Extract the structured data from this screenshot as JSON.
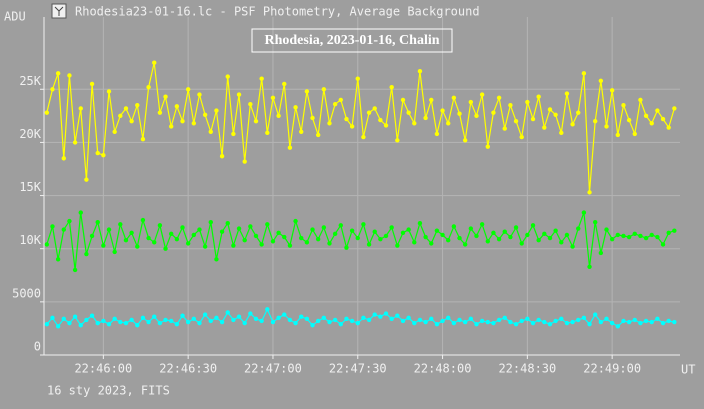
{
  "window_title": "Rhodesia23-01-16.lc - PSF Photometry, Average Background",
  "footer": "16 sty 2023, FITS",
  "chart_data": {
    "type": "line",
    "title": "Rhodesia, 2023-01-16, Chalin",
    "y_label": "ADU",
    "x_label": "UT",
    "xlim": [
      81939,
      82164
    ],
    "ylim": [
      0,
      31800
    ],
    "grid": true,
    "xticks": [
      {
        "value": 81960,
        "label": "22:46:00"
      },
      {
        "value": 81990,
        "label": "22:46:30"
      },
      {
        "value": 82020,
        "label": "22:47:00"
      },
      {
        "value": 82050,
        "label": "22:47:30"
      },
      {
        "value": 82080,
        "label": "22:48:00"
      },
      {
        "value": 82110,
        "label": "22:48:30"
      },
      {
        "value": 82140,
        "label": "22:49:00"
      }
    ],
    "yticks": [
      0,
      5000,
      {
        "value": 10000,
        "label": "10K"
      },
      {
        "value": 15000,
        "label": "15K"
      },
      {
        "value": 20000,
        "label": "20K"
      },
      {
        "value": 25000,
        "label": "25K"
      }
    ],
    "x": [
      81940,
      81942,
      81944,
      81946,
      81948,
      81950,
      81952,
      81954,
      81956,
      81958,
      81960,
      81962,
      81964,
      81966,
      81968,
      81970,
      81972,
      81974,
      81976,
      81978,
      81980,
      81982,
      81984,
      81986,
      81988,
      81990,
      81992,
      81994,
      81996,
      81998,
      82000,
      82002,
      82004,
      82006,
      82008,
      82010,
      82012,
      82014,
      82016,
      82018,
      82020,
      82022,
      82024,
      82026,
      82028,
      82030,
      82032,
      82034,
      82036,
      82038,
      82040,
      82042,
      82044,
      82046,
      82048,
      82050,
      82052,
      82054,
      82056,
      82058,
      82060,
      82062,
      82064,
      82066,
      82068,
      82070,
      82072,
      82074,
      82076,
      82078,
      82080,
      82082,
      82084,
      82086,
      82088,
      82090,
      82092,
      82094,
      82096,
      82098,
      82100,
      82102,
      82104,
      82106,
      82108,
      82110,
      82112,
      82114,
      82116,
      82118,
      82120,
      82122,
      82124,
      82126,
      82128,
      82130,
      82132,
      82134,
      82136,
      82138,
      82140,
      82142,
      82144,
      82146,
      82148,
      82150,
      82152,
      82154,
      82156,
      82158,
      82160,
      82162
    ],
    "series": [
      {
        "color": "#ffff00",
        "values": [
          22800,
          25000,
          26500,
          18500,
          26300,
          20000,
          23200,
          16500,
          25500,
          19000,
          18800,
          24800,
          21000,
          22500,
          23200,
          22000,
          23500,
          20300,
          25200,
          27500,
          22800,
          24300,
          21500,
          23400,
          22000,
          25000,
          21800,
          24500,
          22600,
          21000,
          23000,
          18700,
          26200,
          20800,
          24500,
          18200,
          23600,
          22000,
          26000,
          20900,
          24200,
          22500,
          25500,
          19500,
          23300,
          21000,
          24800,
          22300,
          20700,
          25000,
          21800,
          23600,
          24000,
          22200,
          21500,
          26000,
          20500,
          22800,
          23200,
          22100,
          21600,
          25200,
          20200,
          24000,
          22800,
          21800,
          26700,
          22300,
          24000,
          20800,
          23000,
          21800,
          24200,
          22700,
          20200,
          23800,
          22500,
          24500,
          19600,
          22800,
          24200,
          21300,
          23500,
          22000,
          20500,
          23800,
          22200,
          24300,
          21400,
          23100,
          22600,
          20900,
          24600,
          21700,
          22800,
          26500,
          15300,
          22000,
          25800,
          21500,
          24900,
          20700,
          23500,
          22100,
          20800,
          24000,
          22500,
          21800,
          23000,
          22200,
          21400,
          23200
        ]
      },
      {
        "color": "#00ff00",
        "values": [
          10400,
          12100,
          9000,
          11800,
          12600,
          8000,
          13400,
          9500,
          11200,
          12500,
          10300,
          11800,
          9700,
          12300,
          10800,
          11500,
          10200,
          12700,
          11000,
          10600,
          12200,
          10000,
          11400,
          10900,
          12000,
          10500,
          11300,
          11800,
          10200,
          12500,
          9000,
          11600,
          12400,
          10300,
          11900,
          10800,
          12100,
          11200,
          10400,
          12300,
          10700,
          11500,
          11100,
          10300,
          12600,
          11000,
          10600,
          11800,
          10900,
          12000,
          10500,
          11400,
          12200,
          10100,
          11700,
          11000,
          12300,
          10400,
          11600,
          10900,
          11200,
          12000,
          10300,
          11500,
          11800,
          10600,
          12400,
          11100,
          10500,
          11700,
          11300,
          10800,
          12100,
          11000,
          10400,
          11900,
          11200,
          12300,
          10700,
          11500,
          10900,
          11600,
          11100,
          12000,
          10500,
          11300,
          12200,
          10800,
          11400,
          11000,
          11700,
          10600,
          11300,
          10200,
          11900,
          13400,
          8300,
          12500,
          9600,
          11800,
          10900,
          11300,
          11200,
          11100,
          11400,
          11200,
          11000,
          11300,
          11100,
          10400,
          11500,
          11700
        ]
      },
      {
        "color": "#00ffff",
        "values": [
          2900,
          3500,
          2700,
          3400,
          3000,
          3600,
          2800,
          3300,
          3700,
          3000,
          3200,
          2900,
          3400,
          3100,
          3000,
          3300,
          2800,
          3500,
          3100,
          3600,
          3000,
          3300,
          3200,
          2900,
          3700,
          3100,
          3400,
          3000,
          3800,
          3200,
          3500,
          3100,
          4000,
          3300,
          3600,
          3000,
          3900,
          3400,
          3200,
          4300,
          3100,
          3500,
          3800,
          3300,
          3000,
          3600,
          3400,
          2800,
          3200,
          3500,
          3100,
          3300,
          2900,
          3400,
          3200,
          3000,
          3500,
          3300,
          3800,
          3600,
          3900,
          3400,
          3700,
          3200,
          3500,
          3000,
          3300,
          3100,
          3400,
          2900,
          3200,
          3500,
          3000,
          3300,
          3100,
          3400,
          2900,
          3200,
          3100,
          3000,
          3300,
          3500,
          3100,
          2900,
          3200,
          3400,
          3000,
          3300,
          3100,
          2900,
          3200,
          3400,
          3000,
          3100,
          3300,
          3500,
          2900,
          3800,
          3100,
          3400,
          3000,
          2700,
          3200,
          3100,
          3300,
          3000,
          3200,
          3100,
          3400,
          3000,
          3200,
          3100
        ]
      }
    ]
  }
}
